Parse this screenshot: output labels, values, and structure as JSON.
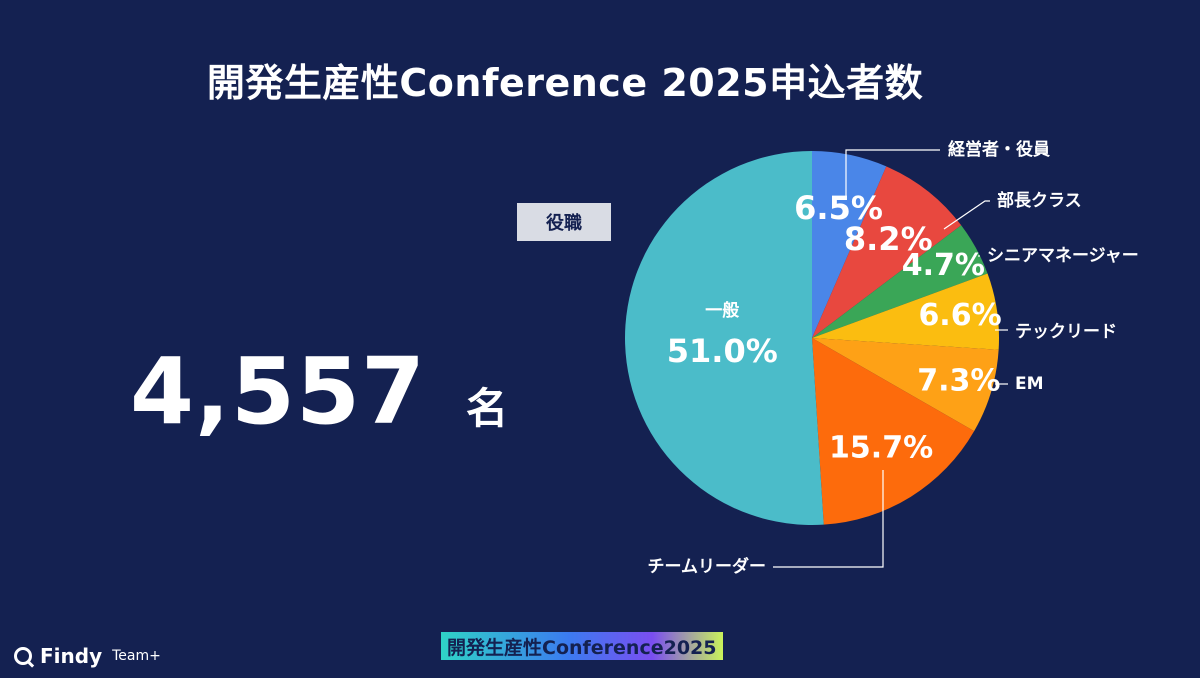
{
  "title": "開発生産性Conference 2025申込者数",
  "category_label": "役職",
  "total": {
    "value": "4,557",
    "unit": "名"
  },
  "footer": {
    "logo": "Findy",
    "logo_sub": "Team+",
    "badge": "開発生産性Conference2025"
  },
  "chart_data": {
    "type": "pie",
    "start": "top",
    "direction": "clockwise",
    "slices": [
      {
        "label": "経営者・役員",
        "value": 6.5,
        "value_label": "6.5%",
        "color": "#4a86e8"
      },
      {
        "label": "部長クラス",
        "value": 8.2,
        "value_label": "8.2%",
        "color": "#e8483f"
      },
      {
        "label": "シニアマネージャー",
        "value": 4.7,
        "value_label": "4.7%",
        "color": "#3aa657"
      },
      {
        "label": "テックリード",
        "value": 6.6,
        "value_label": "6.6%",
        "color": "#fbbd10"
      },
      {
        "label": "EM",
        "value": 7.3,
        "value_label": "7.3%",
        "color": "#fea116"
      },
      {
        "label": "チームリーダー",
        "value": 15.7,
        "value_label": "15.7%",
        "color": "#fd6b0c"
      },
      {
        "label": "一般",
        "value": 51.0,
        "value_label": "51.0%",
        "color": "#4bbcc9"
      }
    ]
  }
}
